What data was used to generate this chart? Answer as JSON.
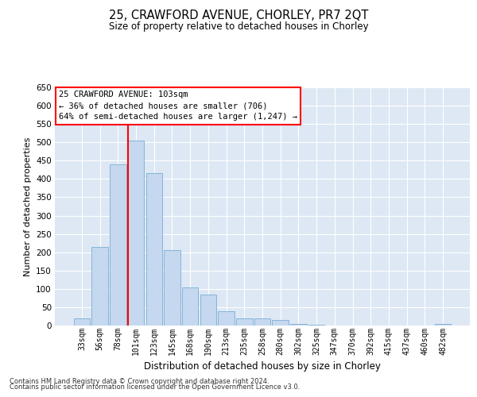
{
  "title": "25, CRAWFORD AVENUE, CHORLEY, PR7 2QT",
  "subtitle": "Size of property relative to detached houses in Chorley",
  "xlabel": "Distribution of detached houses by size in Chorley",
  "ylabel": "Number of detached properties",
  "categories": [
    "33sqm",
    "56sqm",
    "78sqm",
    "101sqm",
    "123sqm",
    "145sqm",
    "168sqm",
    "190sqm",
    "213sqm",
    "235sqm",
    "258sqm",
    "280sqm",
    "302sqm",
    "325sqm",
    "347sqm",
    "370sqm",
    "392sqm",
    "415sqm",
    "437sqm",
    "460sqm",
    "482sqm"
  ],
  "values": [
    20,
    215,
    440,
    505,
    415,
    205,
    105,
    85,
    40,
    20,
    20,
    15,
    5,
    3,
    1,
    0,
    0,
    1,
    0,
    0,
    5
  ],
  "bar_color": "#c5d8ef",
  "bar_edgecolor": "#7aadd4",
  "background_color": "#dde8f4",
  "grid_color": "#ffffff",
  "property_label": "25 CRAWFORD AVENUE: 103sqm",
  "annotation_line1": "← 36% of detached houses are smaller (706)",
  "annotation_line2": "64% of semi-detached houses are larger (1,247) →",
  "red_line_x": 2.575,
  "ylim": [
    0,
    650
  ],
  "yticks": [
    0,
    50,
    100,
    150,
    200,
    250,
    300,
    350,
    400,
    450,
    500,
    550,
    600,
    650
  ],
  "footnote1": "Contains HM Land Registry data © Crown copyright and database right 2024.",
  "footnote2": "Contains public sector information licensed under the Open Government Licence v3.0."
}
